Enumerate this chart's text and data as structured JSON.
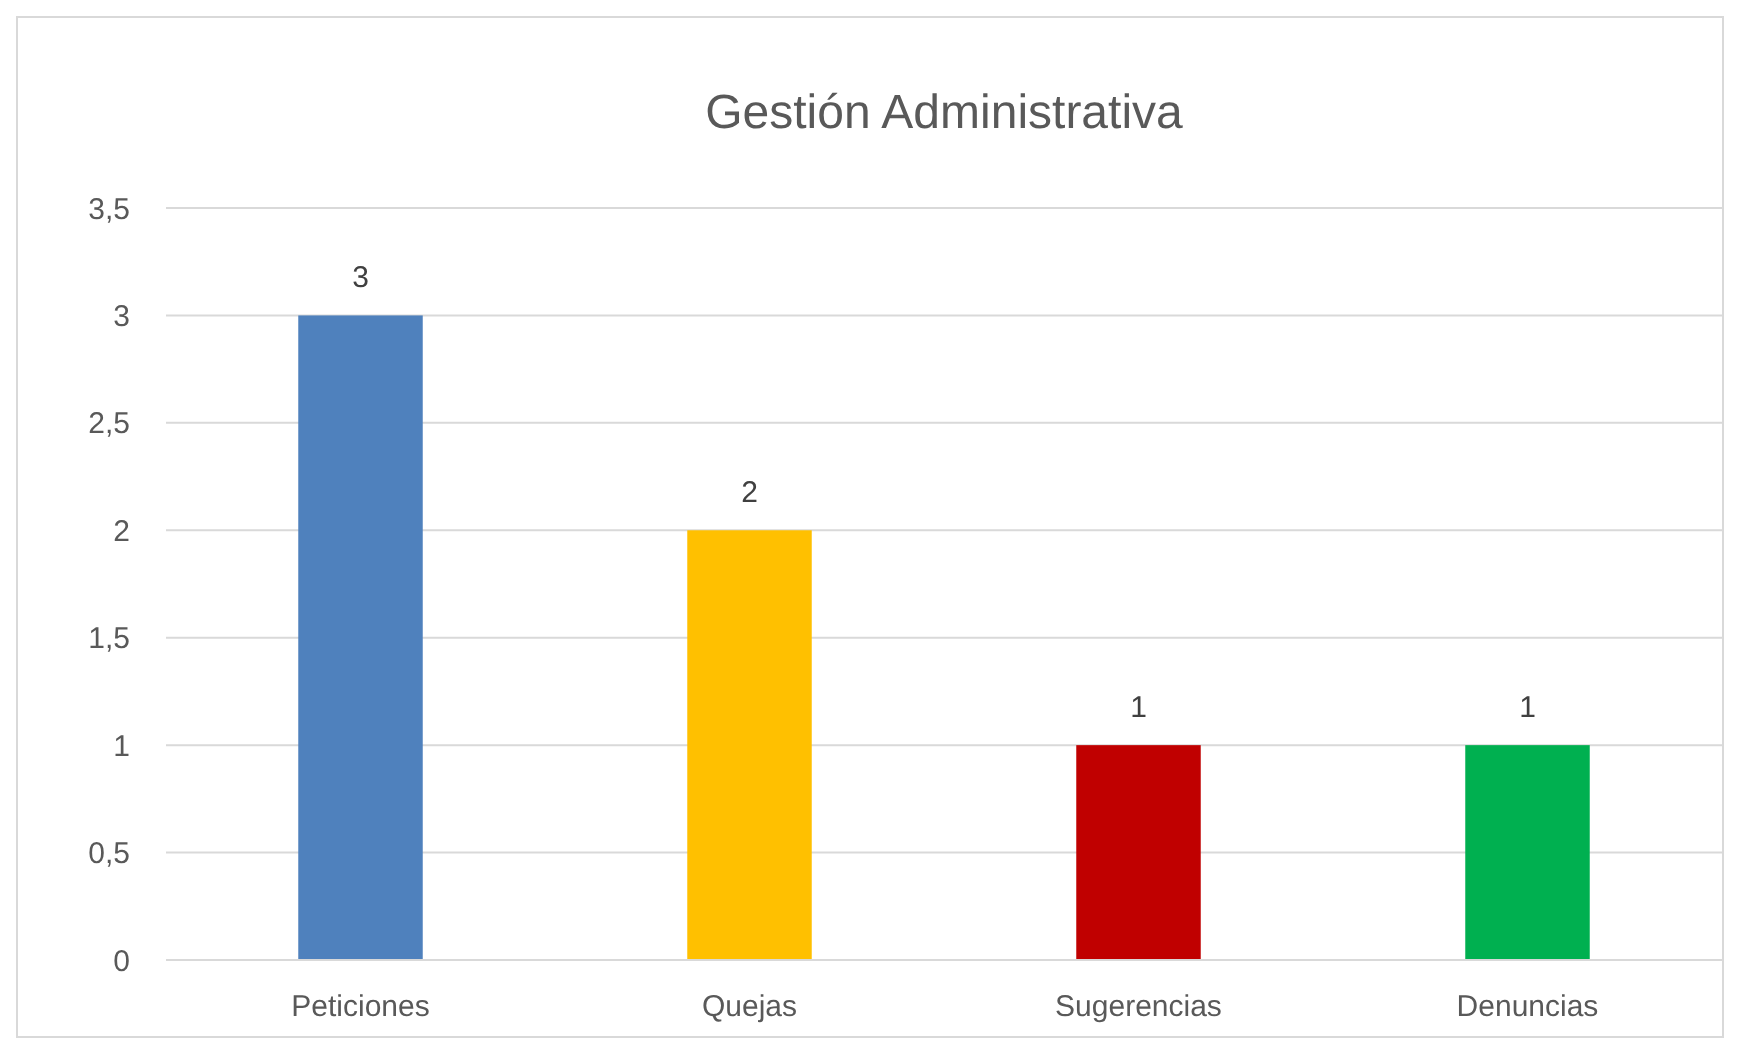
{
  "chart_data": {
    "type": "bar",
    "title": "Gestión Administrativa",
    "categories": [
      "Peticiones",
      "Quejas",
      "Sugerencias",
      "Denuncias"
    ],
    "values": [
      3,
      2,
      1,
      1
    ],
    "colors": [
      "#4f81bd",
      "#ffc000",
      "#c00000",
      "#00b050"
    ],
    "ylim": [
      0,
      3.5
    ],
    "yticks": [
      0,
      {
        "value": 0.5,
        "label": "0,5"
      },
      1,
      {
        "value": 1.5,
        "label": "1,5"
      },
      2,
      {
        "value": 2.5,
        "label": "2,5"
      },
      3,
      {
        "value": 3.5,
        "label": "3,5"
      }
    ],
    "grid": true,
    "data_labels": true
  }
}
